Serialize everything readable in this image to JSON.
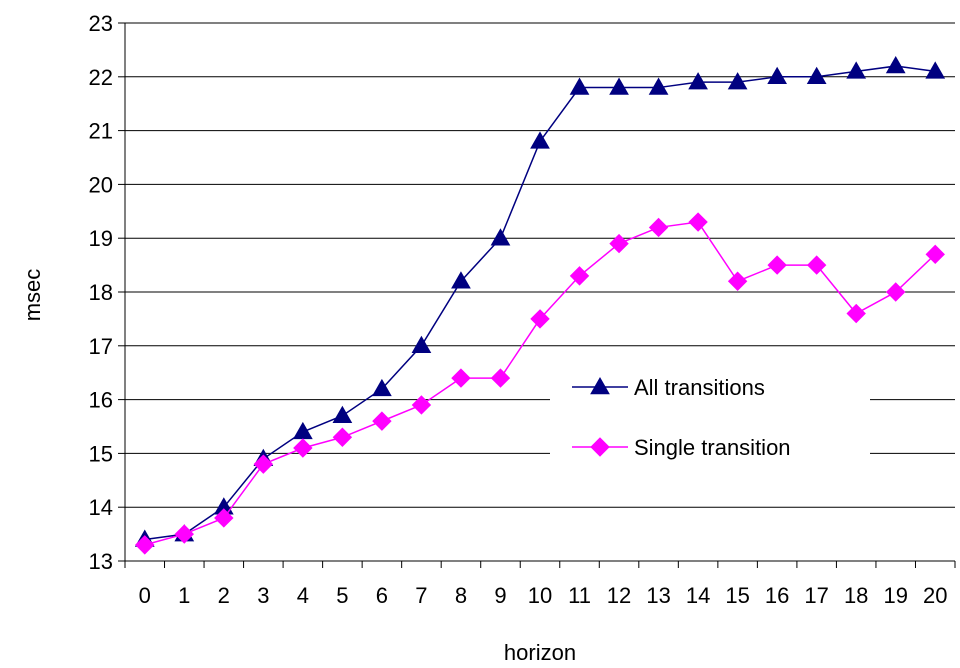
{
  "chart_data": {
    "type": "line",
    "xlabel": "horizon",
    "ylabel": "msec",
    "x": [
      0,
      1,
      2,
      3,
      4,
      5,
      6,
      7,
      8,
      9,
      10,
      11,
      12,
      13,
      14,
      15,
      16,
      17,
      18,
      19,
      20
    ],
    "ylim": [
      13,
      23
    ],
    "yticks": [
      13,
      14,
      15,
      16,
      17,
      18,
      19,
      20,
      21,
      22,
      23
    ],
    "grid": "horizontal",
    "legend_position": "center-right",
    "series": [
      {
        "name": "All transitions",
        "color": "#000080",
        "marker": "triangle",
        "values": [
          13.4,
          13.5,
          14.0,
          14.9,
          15.4,
          15.7,
          16.2,
          17.0,
          18.2,
          19.0,
          20.8,
          21.8,
          21.8,
          21.8,
          21.9,
          21.9,
          22.0,
          22.0,
          22.1,
          22.2,
          22.1
        ]
      },
      {
        "name": "Single transition",
        "color": "#ff00ff",
        "marker": "diamond",
        "values": [
          13.3,
          13.5,
          13.8,
          14.8,
          15.1,
          15.3,
          15.6,
          15.9,
          16.4,
          16.4,
          17.5,
          18.3,
          18.9,
          19.2,
          19.3,
          18.2,
          18.5,
          18.5,
          17.6,
          18.0,
          18.7
        ]
      }
    ]
  }
}
